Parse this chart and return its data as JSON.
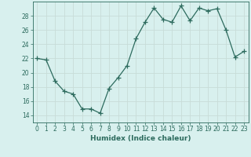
{
  "xlabel": "Humidex (Indice chaleur)",
  "ylabel": "",
  "x": [
    0,
    1,
    2,
    3,
    4,
    5,
    6,
    7,
    8,
    9,
    10,
    11,
    12,
    13,
    14,
    15,
    16,
    17,
    18,
    19,
    20,
    21,
    22,
    23
  ],
  "y": [
    22.0,
    21.8,
    18.8,
    17.4,
    17.0,
    14.9,
    14.9,
    14.3,
    17.8,
    19.3,
    21.0,
    24.8,
    27.1,
    29.1,
    27.5,
    27.1,
    29.4,
    27.3,
    29.1,
    28.7,
    29.0,
    26.0,
    22.2,
    23.0
  ],
  "line_color": "#2d6b5e",
  "marker": "+",
  "marker_size": 4,
  "bg_color": "#d8f0ee",
  "grid_color": "#c8dcd8",
  "ylim": [
    13,
    30
  ],
  "yticks": [
    14,
    16,
    18,
    20,
    22,
    24,
    26,
    28
  ],
  "xlim": [
    -0.5,
    23.5
  ],
  "label_fontsize": 6.5,
  "tick_fontsize": 5.5
}
